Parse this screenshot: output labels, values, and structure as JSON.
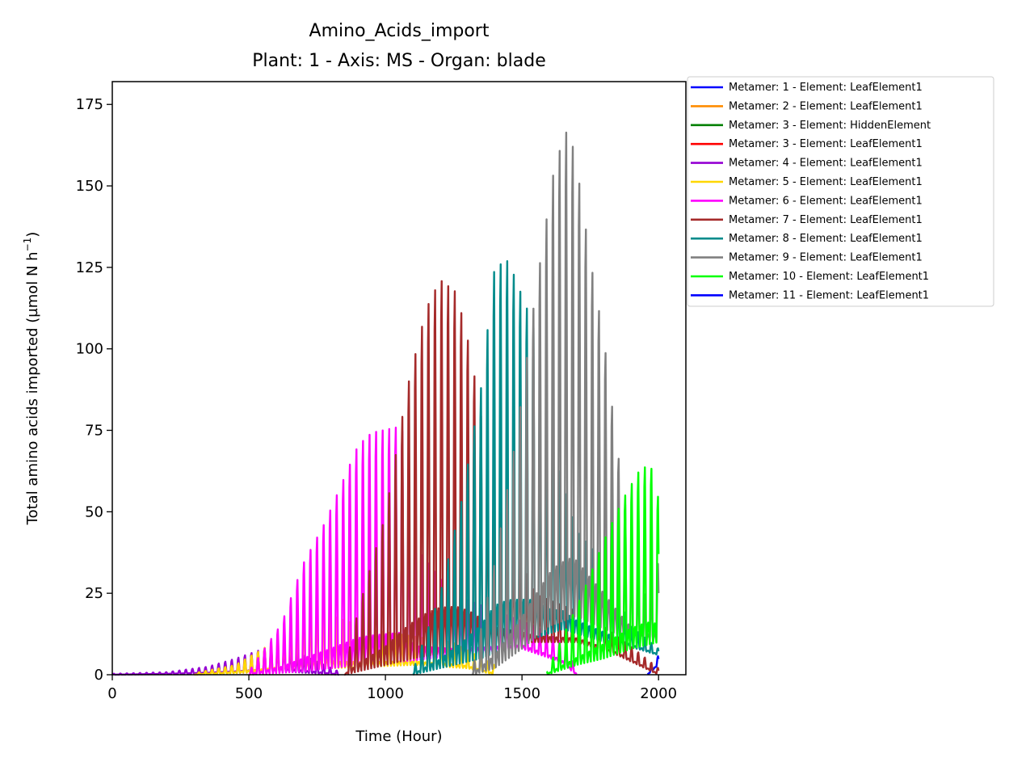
{
  "chart_data": {
    "type": "line",
    "title": "Amino_Acids_import",
    "subtitle": "Plant: 1 - Axis: MS - Organ: blade",
    "xlabel": "Time (Hour)",
    "ylabel_main": "Total amino acids imported (µmol N h",
    "ylabel_sup": "−1",
    "ylabel_end": ")",
    "xlim": [
      0,
      2100
    ],
    "ylim": [
      0,
      182
    ],
    "xticks": [
      0,
      500,
      1000,
      1500,
      2000
    ],
    "xtick_labels": [
      "0",
      "500",
      "1000",
      "1500",
      "2000"
    ],
    "yticks": [
      0,
      25,
      50,
      75,
      100,
      125,
      150,
      175
    ],
    "ytick_labels": [
      "0",
      "25",
      "50",
      "75",
      "100",
      "125",
      "150",
      "175"
    ],
    "grid": false,
    "legend_position": "outside right, top",
    "period_hours": 24,
    "series": [
      {
        "name": "Metamer: 1 - Element: LeafElement1",
        "color": "#0000ff",
        "t_start": 1960,
        "t_end": 2000,
        "peaks": [
          [
            1960,
            1
          ],
          [
            2000,
            6
          ]
        ],
        "base": [
          [
            1960,
            0
          ],
          [
            2000,
            3
          ]
        ]
      },
      {
        "name": "Metamer: 2 - Element: LeafElement1",
        "color": "#ff8c00",
        "t_start": 0,
        "t_end": 0,
        "peaks": [],
        "base": []
      },
      {
        "name": "Metamer: 3 - Element: HiddenElement",
        "color": "#008000",
        "t_start": 0,
        "t_end": 0,
        "peaks": [],
        "base": []
      },
      {
        "name": "Metamer: 3 - Element: LeafElement1",
        "color": "#ff0000",
        "t_start": 0,
        "t_end": 0,
        "peaks": [],
        "base": []
      },
      {
        "name": "Metamer: 4 - Element: LeafElement1",
        "color": "#9400d3",
        "t_start": 0,
        "t_end": 830,
        "peaks": [
          [
            0,
            0.3
          ],
          [
            200,
            0.8
          ],
          [
            350,
            2.5
          ],
          [
            450,
            5
          ],
          [
            550,
            8
          ],
          [
            620,
            10
          ],
          [
            700,
            6
          ],
          [
            830,
            1
          ]
        ],
        "base": [
          [
            0,
            0
          ],
          [
            450,
            0.5
          ],
          [
            620,
            1
          ],
          [
            830,
            0
          ]
        ]
      },
      {
        "name": "Metamer: 5 - Element: LeafElement1",
        "color": "#ffd700",
        "t_start": 300,
        "t_end": 1400,
        "peaks": [
          [
            300,
            0.5
          ],
          [
            450,
            3
          ],
          [
            550,
            8
          ],
          [
            620,
            12
          ],
          [
            700,
            20
          ],
          [
            780,
            27
          ],
          [
            820,
            18
          ],
          [
            950,
            14
          ],
          [
            1100,
            12
          ],
          [
            1250,
            10
          ],
          [
            1400,
            3
          ]
        ],
        "base": [
          [
            300,
            0
          ],
          [
            600,
            1
          ],
          [
            800,
            2
          ],
          [
            1100,
            3
          ],
          [
            1300,
            2
          ],
          [
            1400,
            0
          ]
        ]
      },
      {
        "name": "Metamer: 6 - Element: LeafElement1",
        "color": "#ff00ff",
        "t_start": 500,
        "t_end": 1700,
        "peaks": [
          [
            500,
            1
          ],
          [
            620,
            16
          ],
          [
            700,
            35
          ],
          [
            780,
            48
          ],
          [
            850,
            62
          ],
          [
            900,
            72
          ],
          [
            950,
            76
          ],
          [
            1060,
            78
          ],
          [
            1110,
            40
          ],
          [
            1250,
            25
          ],
          [
            1400,
            20
          ],
          [
            1550,
            15
          ],
          [
            1650,
            10
          ],
          [
            1700,
            2
          ]
        ],
        "base": [
          [
            500,
            0
          ],
          [
            700,
            1
          ],
          [
            900,
            3
          ],
          [
            1050,
            4
          ],
          [
            1300,
            6
          ],
          [
            1500,
            8
          ],
          [
            1640,
            4
          ],
          [
            1700,
            0
          ]
        ]
      },
      {
        "name": "Metamer: 7 - Element: LeafElement1",
        "color": "#a52a2a",
        "t_start": 850,
        "t_end": 2000,
        "peaks": [
          [
            850,
            1
          ],
          [
            900,
            20
          ],
          [
            1000,
            50
          ],
          [
            1080,
            90
          ],
          [
            1150,
            115
          ],
          [
            1200,
            124
          ],
          [
            1260,
            120
          ],
          [
            1310,
            102
          ],
          [
            1400,
            55
          ],
          [
            1550,
            25
          ],
          [
            1750,
            18
          ],
          [
            1880,
            10
          ],
          [
            2000,
            2
          ]
        ],
        "base": [
          [
            850,
            0
          ],
          [
            950,
            2
          ],
          [
            1100,
            5
          ],
          [
            1300,
            8
          ],
          [
            1500,
            10
          ],
          [
            1700,
            10
          ],
          [
            1850,
            6
          ],
          [
            2000,
            0
          ]
        ]
      },
      {
        "name": "Metamer: 8 - Element: LeafElement1",
        "color": "#008b8b",
        "t_start": 1100,
        "t_end": 2000,
        "peaks": [
          [
            1100,
            1
          ],
          [
            1200,
            25
          ],
          [
            1280,
            55
          ],
          [
            1350,
            90
          ],
          [
            1400,
            128
          ],
          [
            1450,
            130
          ],
          [
            1540,
            110
          ],
          [
            1600,
            75
          ],
          [
            1700,
            45
          ],
          [
            1800,
            35
          ],
          [
            1900,
            15
          ],
          [
            2000,
            8
          ]
        ],
        "base": [
          [
            1100,
            0
          ],
          [
            1200,
            2
          ],
          [
            1350,
            5
          ],
          [
            1500,
            10
          ],
          [
            1650,
            14
          ],
          [
            1800,
            10
          ],
          [
            1920,
            8
          ],
          [
            2000,
            6
          ]
        ]
      },
      {
        "name": "Metamer: 9 - Element: LeafElement1",
        "color": "#808080",
        "t_start": 1320,
        "t_end": 2000,
        "peaks": [
          [
            1320,
            2
          ],
          [
            1400,
            35
          ],
          [
            1480,
            75
          ],
          [
            1550,
            120
          ],
          [
            1620,
            160
          ],
          [
            1670,
            172
          ],
          [
            1700,
            160
          ],
          [
            1750,
            130
          ],
          [
            1800,
            105
          ],
          [
            1850,
            70
          ],
          [
            1900,
            40
          ],
          [
            1950,
            25
          ],
          [
            2000,
            35
          ]
        ],
        "base": [
          [
            1320,
            0
          ],
          [
            1400,
            2
          ],
          [
            1500,
            8
          ],
          [
            1600,
            15
          ],
          [
            1700,
            18
          ],
          [
            1800,
            14
          ],
          [
            1900,
            11
          ],
          [
            2000,
            10
          ]
        ]
      },
      {
        "name": "Metamer: 10 - Element: LeafElement1",
        "color": "#00ff00",
        "t_start": 1590,
        "t_end": 2000,
        "peaks": [
          [
            1590,
            1
          ],
          [
            1650,
            12
          ],
          [
            1720,
            25
          ],
          [
            1800,
            42
          ],
          [
            1870,
            55
          ],
          [
            1930,
            64
          ],
          [
            1970,
            66
          ],
          [
            2000,
            55
          ]
        ],
        "base": [
          [
            1590,
            0
          ],
          [
            1700,
            3
          ],
          [
            1800,
            5
          ],
          [
            1900,
            8
          ],
          [
            2000,
            10
          ]
        ]
      },
      {
        "name": "Metamer: 11 - Element: LeafElement1",
        "color": "#0000ff",
        "t_start": 0,
        "t_end": 0,
        "peaks": [],
        "base": []
      }
    ]
  }
}
